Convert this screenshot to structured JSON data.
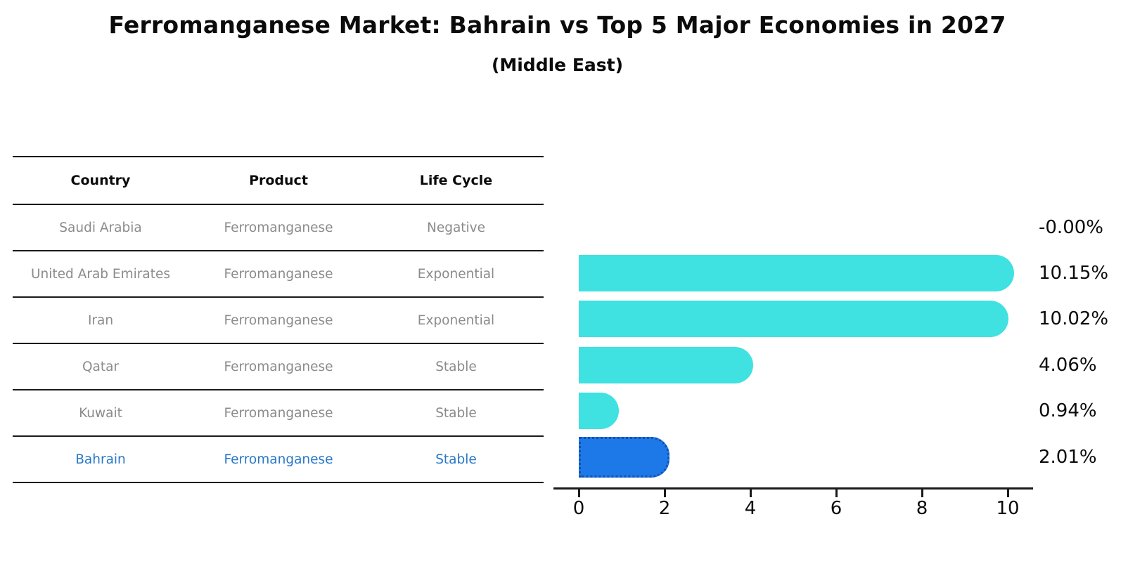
{
  "header": {
    "title": "Ferromanganese Market: Bahrain vs Top 5 Major Economies in 2027",
    "subtitle": "(Middle East)"
  },
  "table": {
    "columns": [
      "Country",
      "Product",
      "Life Cycle"
    ],
    "rows": [
      {
        "country": "Saudi Arabia",
        "product": "Ferromanganese",
        "life_cycle": "Negative",
        "highlight": false
      },
      {
        "country": "United Arab Emirates",
        "product": "Ferromanganese",
        "life_cycle": "Exponential",
        "highlight": false
      },
      {
        "country": "Iran",
        "product": "Ferromanganese",
        "life_cycle": "Exponential",
        "highlight": false
      },
      {
        "country": "Qatar",
        "product": "Ferromanganese",
        "life_cycle": "Stable",
        "highlight": false
      },
      {
        "country": "Kuwait",
        "product": "Ferromanganese",
        "life_cycle": "Stable",
        "highlight": true
      }
    ],
    "highlight_row": {
      "country": "Bahrain",
      "product": "Ferromanganese",
      "life_cycle": "Stable"
    }
  },
  "chart_data": {
    "type": "bar",
    "orientation": "horizontal",
    "title": "Ferromanganese Market: Bahrain vs Top 5 Major Economies in 2027 (Middle East)",
    "categories": [
      "Saudi Arabia",
      "United Arab Emirates",
      "Iran",
      "Qatar",
      "Kuwait",
      "Bahrain"
    ],
    "values": [
      -0.0,
      10.15,
      10.02,
      4.06,
      0.94,
      2.01
    ],
    "value_labels": [
      "-0.00%",
      "10.15%",
      "10.02%",
      "4.06%",
      "0.94%",
      "2.01%"
    ],
    "value_suffix": "%",
    "xticks": [
      "0",
      "2",
      "4",
      "6",
      "8",
      "10"
    ],
    "xtick_values": [
      0,
      2,
      4,
      6,
      8,
      10
    ],
    "xlim": [
      -0.55,
      10.65
    ],
    "grid": false,
    "legend": false,
    "bar_color": "#40e1e1",
    "highlight_color": "#1e79e8",
    "highlight_border_color": "#1550b2",
    "highlight_index": 5
  },
  "colors": {
    "background": "#ffffff",
    "text_primary": "#0b0b0b",
    "text_muted": "#8b8b8b",
    "highlight_text": "#2878c8",
    "line": "#1a1a1a"
  }
}
